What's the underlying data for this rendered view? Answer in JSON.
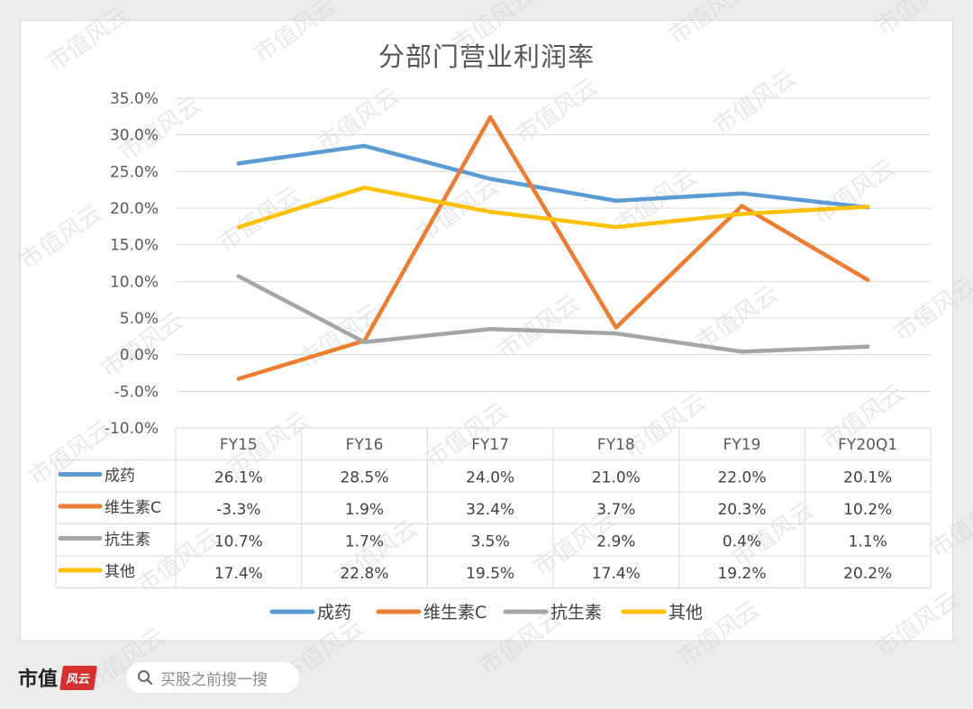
{
  "chart_data": {
    "type": "line",
    "title": "分部门营业利润率",
    "categories": [
      "FY15",
      "FY16",
      "FY17",
      "FY18",
      "FY19",
      "FY20Q1"
    ],
    "ylim": [
      -10,
      35
    ],
    "yticks": [
      "35.0%",
      "30.0%",
      "25.0%",
      "20.0%",
      "15.0%",
      "10.0%",
      "5.0%",
      "0.0%",
      "-5.0%",
      "-10.0%"
    ],
    "grid": true,
    "legend_position": "bottom",
    "data_table": true,
    "series": [
      {
        "name": "成药",
        "color": "#5b9bd5",
        "values": [
          26.1,
          28.5,
          24.0,
          21.0,
          22.0,
          20.1
        ],
        "labels": [
          "26.1%",
          "28.5%",
          "24.0%",
          "21.0%",
          "22.0%",
          "20.1%"
        ]
      },
      {
        "name": "维生素C",
        "color": "#ed7d31",
        "values": [
          -3.3,
          1.9,
          32.4,
          3.7,
          20.3,
          10.2
        ],
        "labels": [
          "-3.3%",
          "1.9%",
          "32.4%",
          "3.7%",
          "20.3%",
          "10.2%"
        ]
      },
      {
        "name": "抗生素",
        "color": "#a5a5a5",
        "values": [
          10.7,
          1.7,
          3.5,
          2.9,
          0.4,
          1.1
        ],
        "labels": [
          "10.7%",
          "1.7%",
          "3.5%",
          "2.9%",
          "0.4%",
          "1.1%"
        ]
      },
      {
        "name": "其他",
        "color": "#ffc000",
        "values": [
          17.4,
          22.8,
          19.5,
          17.4,
          19.2,
          20.2
        ],
        "labels": [
          "17.4%",
          "22.8%",
          "19.5%",
          "17.4%",
          "19.2%",
          "20.2%"
        ]
      }
    ]
  },
  "footer": {
    "brand": "市值",
    "brand_seal": "风云",
    "search_placeholder": "买股之前搜一搜",
    "search_icon": "search-icon"
  },
  "watermark": "市值风云"
}
